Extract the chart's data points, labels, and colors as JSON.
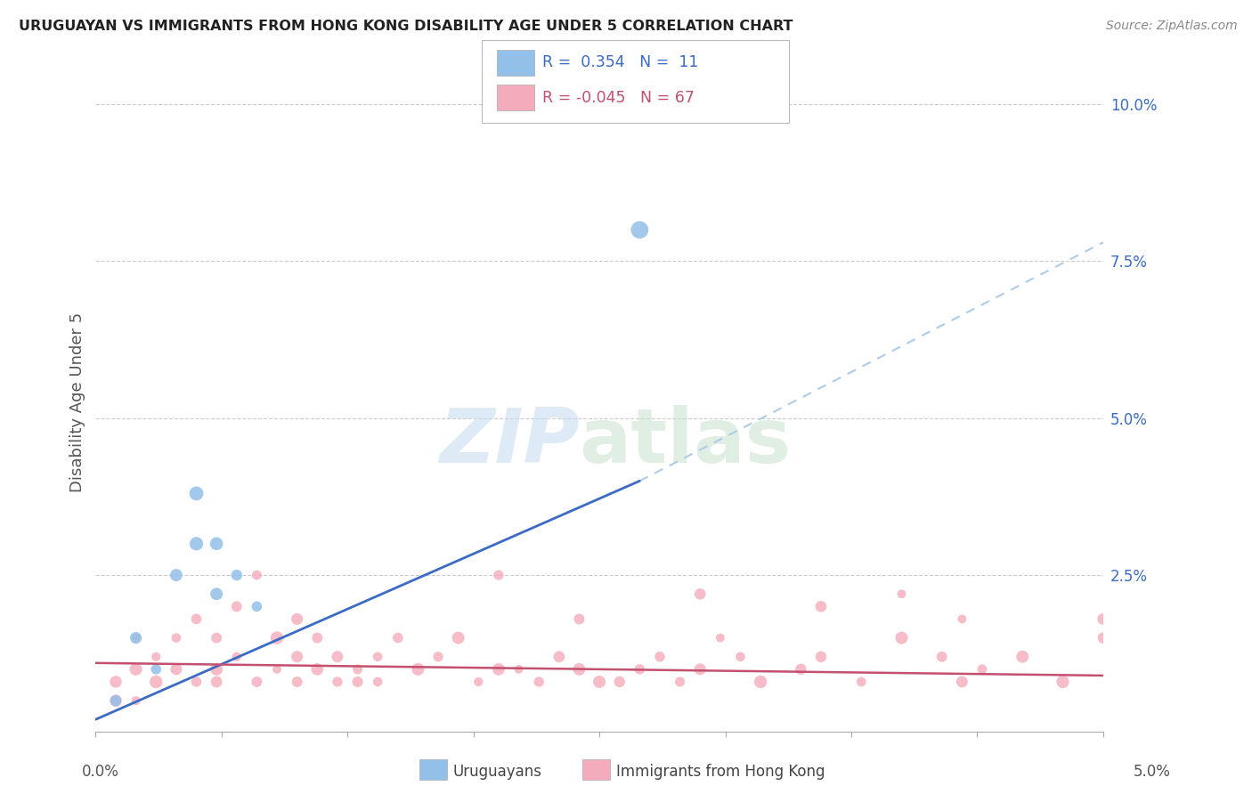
{
  "title": "URUGUAYAN VS IMMIGRANTS FROM HONG KONG DISABILITY AGE UNDER 5 CORRELATION CHART",
  "source": "Source: ZipAtlas.com",
  "ylabel": "Disability Age Under 5",
  "right_yticks": [
    "10.0%",
    "7.5%",
    "5.0%",
    "2.5%"
  ],
  "right_ytick_vals": [
    0.1,
    0.075,
    0.05,
    0.025
  ],
  "xlim": [
    0.0,
    0.05
  ],
  "ylim": [
    0.0,
    0.105
  ],
  "blue_color": "#92C0E8",
  "pink_color": "#F4ABBB",
  "blue_line_color": "#3B6BC4",
  "pink_line_color": "#C45070",
  "blue_dash_color": "#AECCE8",
  "uruguayan_x": [
    0.001,
    0.002,
    0.003,
    0.004,
    0.005,
    0.005,
    0.006,
    0.006,
    0.007,
    0.008,
    0.027
  ],
  "uruguayan_y": [
    0.005,
    0.015,
    0.01,
    0.025,
    0.03,
    0.038,
    0.022,
    0.03,
    0.025,
    0.02,
    0.08
  ],
  "hk_x": [
    0.001,
    0.001,
    0.002,
    0.002,
    0.002,
    0.003,
    0.003,
    0.004,
    0.004,
    0.005,
    0.005,
    0.006,
    0.006,
    0.006,
    0.007,
    0.007,
    0.008,
    0.008,
    0.009,
    0.009,
    0.01,
    0.01,
    0.01,
    0.011,
    0.011,
    0.012,
    0.012,
    0.013,
    0.013,
    0.014,
    0.014,
    0.015,
    0.016,
    0.017,
    0.018,
    0.019,
    0.02,
    0.02,
    0.021,
    0.022,
    0.023,
    0.024,
    0.024,
    0.025,
    0.026,
    0.027,
    0.028,
    0.029,
    0.03,
    0.03,
    0.031,
    0.032,
    0.033,
    0.035,
    0.036,
    0.038,
    0.04,
    0.042,
    0.043,
    0.044,
    0.046,
    0.048,
    0.05,
    0.036,
    0.04,
    0.043,
    0.05
  ],
  "hk_y": [
    0.008,
    0.005,
    0.01,
    0.015,
    0.005,
    0.008,
    0.012,
    0.01,
    0.015,
    0.008,
    0.018,
    0.01,
    0.008,
    0.015,
    0.012,
    0.02,
    0.008,
    0.025,
    0.015,
    0.01,
    0.012,
    0.018,
    0.008,
    0.01,
    0.015,
    0.008,
    0.012,
    0.008,
    0.01,
    0.012,
    0.008,
    0.015,
    0.01,
    0.012,
    0.015,
    0.008,
    0.025,
    0.01,
    0.01,
    0.008,
    0.012,
    0.018,
    0.01,
    0.008,
    0.008,
    0.01,
    0.012,
    0.008,
    0.01,
    0.022,
    0.015,
    0.012,
    0.008,
    0.01,
    0.012,
    0.008,
    0.015,
    0.012,
    0.008,
    0.01,
    0.012,
    0.008,
    0.015,
    0.02,
    0.022,
    0.018,
    0.018
  ],
  "uru_blue_line_x": [
    0.0,
    0.027
  ],
  "uru_blue_line_y": [
    0.002,
    0.04
  ],
  "uru_dash_line_x": [
    0.027,
    0.05
  ],
  "uru_dash_line_y": [
    0.04,
    0.078
  ],
  "hk_pink_line_x": [
    0.0,
    0.05
  ],
  "hk_pink_line_y": [
    0.011,
    0.009
  ],
  "uruguayan_sizes": [
    80,
    90,
    70,
    100,
    120,
    130,
    100,
    110,
    80,
    70,
    200
  ],
  "hk_base_size": 70
}
